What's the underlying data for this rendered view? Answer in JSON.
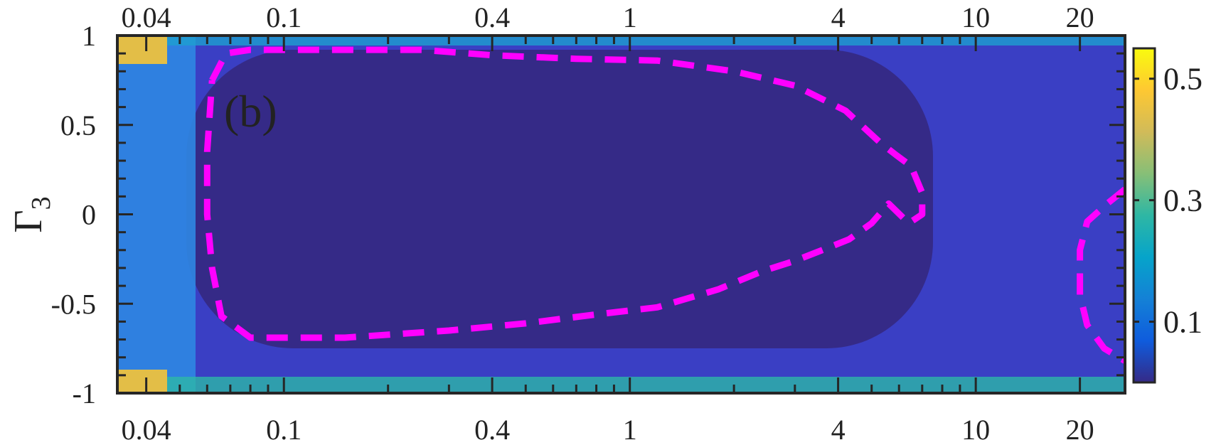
{
  "chart_data": {
    "type": "heatmap",
    "panel_label": "(b)",
    "panel_label_color": "#d62728",
    "x_scale": "log",
    "xlim": [
      0.033,
      27
    ],
    "ylim": [
      -1,
      1
    ],
    "xlabel": "",
    "ylabel": "Γ3",
    "x_ticks": [
      0.04,
      0.1,
      0.4,
      1,
      4,
      10,
      20
    ],
    "x_tick_labels": [
      "0.04",
      "0.1",
      "0.4",
      "1",
      "4",
      "10",
      "20"
    ],
    "y_ticks": [
      1,
      0.5,
      0,
      -0.5,
      -1
    ],
    "y_tick_labels": [
      "1",
      "0.5",
      "0",
      "-0.5",
      "-1"
    ],
    "colorbar": {
      "range": [
        0,
        0.55
      ],
      "ticks": [
        0.5,
        0.3,
        0.1
      ],
      "tick_labels": [
        "0.5",
        "0.3",
        "0.1"
      ],
      "colormap": "parula",
      "colormap_stops": [
        "#352a87",
        "#0f5cdd",
        "#1481d6",
        "#06a4ca",
        "#2eb7a4",
        "#87bf77",
        "#d1bb59",
        "#fec832",
        "#f9fb0e"
      ]
    },
    "contour_line_color": "#ff00ff",
    "contour_line_style": "dashed",
    "contours": [
      {
        "name": "",
        "points": [
          [
            0.062,
            0.75
          ],
          [
            0.068,
            0.9
          ],
          [
            0.08,
            0.92
          ],
          [
            0.15,
            0.92
          ],
          [
            0.25,
            0.92
          ],
          [
            0.4,
            0.89
          ],
          [
            0.7,
            0.87
          ],
          [
            1.2,
            0.86
          ],
          [
            2.0,
            0.8
          ],
          [
            3.0,
            0.72
          ],
          [
            4.2,
            0.58
          ],
          [
            5.3,
            0.4
          ],
          [
            5.9,
            0.33
          ],
          [
            6.5,
            0.27
          ],
          [
            7.0,
            0.12
          ],
          [
            7.0,
            0.0
          ],
          [
            6.4,
            -0.05
          ],
          [
            5.6,
            0.06
          ],
          [
            5.0,
            -0.05
          ],
          [
            4.3,
            -0.14
          ],
          [
            3.6,
            -0.2
          ],
          [
            3.0,
            -0.26
          ],
          [
            2.4,
            -0.32
          ],
          [
            1.8,
            -0.42
          ],
          [
            1.2,
            -0.52
          ],
          [
            0.8,
            -0.56
          ],
          [
            0.5,
            -0.61
          ],
          [
            0.3,
            -0.65
          ],
          [
            0.15,
            -0.69
          ],
          [
            0.08,
            -0.69
          ],
          [
            0.066,
            -0.57
          ],
          [
            0.062,
            -0.3
          ],
          [
            0.06,
            0.0
          ],
          [
            0.06,
            0.35
          ],
          [
            0.062,
            0.75
          ]
        ]
      },
      {
        "name": "",
        "points": [
          [
            27,
            0.14
          ],
          [
            24,
            0.06
          ],
          [
            21,
            -0.04
          ],
          [
            20,
            -0.2
          ],
          [
            20,
            -0.45
          ],
          [
            21,
            -0.62
          ],
          [
            23.5,
            -0.75
          ],
          [
            27,
            -0.82
          ]
        ]
      }
    ]
  }
}
